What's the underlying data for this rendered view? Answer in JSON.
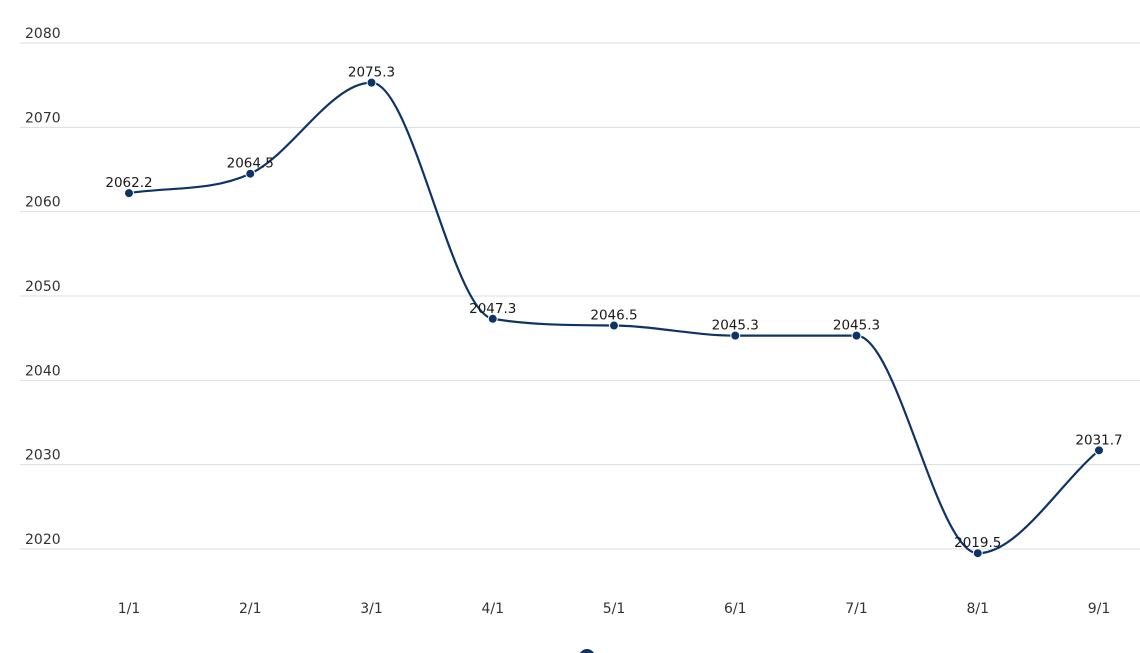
{
  "chart_data": {
    "type": "line",
    "categories": [
      "1/1",
      "2/1",
      "3/1",
      "4/1",
      "5/1",
      "6/1",
      "7/1",
      "8/1",
      "9/1"
    ],
    "series": [
      {
        "values": [
          2062.2,
          2064.5,
          2075.3,
          2047.3,
          2046.5,
          2045.3,
          2045.3,
          2019.5,
          2031.7
        ],
        "labels": [
          "2062.2",
          "2064.5",
          "2075.3",
          "2047.3",
          "2046.5",
          "2045.3",
          "2045.3",
          "2019.5",
          "2031.7"
        ],
        "color": "#0d3466"
      }
    ],
    "yticks": [
      "2020",
      "2030",
      "2040",
      "2050",
      "2060",
      "2070",
      "2080"
    ],
    "ylim": [
      2020,
      2080
    ],
    "title": "",
    "xlabel": "",
    "ylabel": "",
    "grid": true,
    "smooth": true,
    "legend": "bottom-center"
  }
}
